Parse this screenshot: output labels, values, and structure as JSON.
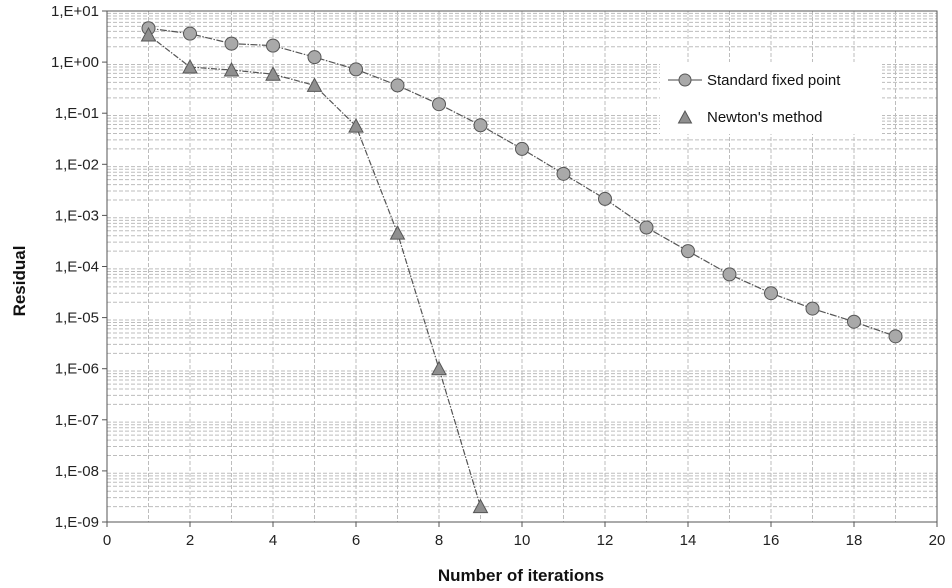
{
  "chart_data": {
    "type": "line",
    "title": "",
    "xlabel": "Number of iterations",
    "ylabel": "Residual",
    "xlim": [
      0,
      20
    ],
    "ylim": [
      1e-09,
      10
    ],
    "y_scale": "log",
    "x_ticks": [
      "0",
      "2",
      "4",
      "6",
      "8",
      "10",
      "12",
      "14",
      "16",
      "18",
      "20"
    ],
    "y_ticks": [
      "1,E-09",
      "1,E-08",
      "1,E-07",
      "1,E-06",
      "1,E-05",
      "1,E-04",
      "1,E-03",
      "1,E-02",
      "1,E-01",
      "1,E+00",
      "1,E+01"
    ],
    "grid": true,
    "legend_position": "top-right",
    "series": [
      {
        "name": "Standard fixed point",
        "marker": "circle",
        "color": "#a9a9a9",
        "points": [
          [
            1,
            4.6
          ],
          [
            2,
            3.6
          ],
          [
            3,
            2.3
          ],
          [
            4,
            2.1
          ],
          [
            5,
            1.25
          ],
          [
            6,
            0.72
          ],
          [
            7,
            0.35
          ],
          [
            8,
            0.15
          ],
          [
            9,
            0.058
          ],
          [
            10,
            0.02
          ],
          [
            11,
            0.0065
          ],
          [
            12,
            0.0021
          ],
          [
            13,
            0.00058
          ],
          [
            14,
            0.0002
          ],
          [
            15,
            7e-05
          ],
          [
            16,
            3e-05
          ],
          [
            17,
            1.5e-05
          ],
          [
            18,
            8.3e-06
          ],
          [
            19,
            4.3e-06
          ]
        ]
      },
      {
        "name": "Newton's method",
        "marker": "triangle",
        "color": "#8f8f8f",
        "points": [
          [
            1,
            3.4
          ],
          [
            2,
            0.8
          ],
          [
            3,
            0.7
          ],
          [
            4,
            0.58
          ],
          [
            5,
            0.35
          ],
          [
            6,
            0.056
          ],
          [
            7,
            0.00045
          ],
          [
            8,
            1e-06
          ],
          [
            9,
            2e-09
          ]
        ]
      }
    ]
  }
}
